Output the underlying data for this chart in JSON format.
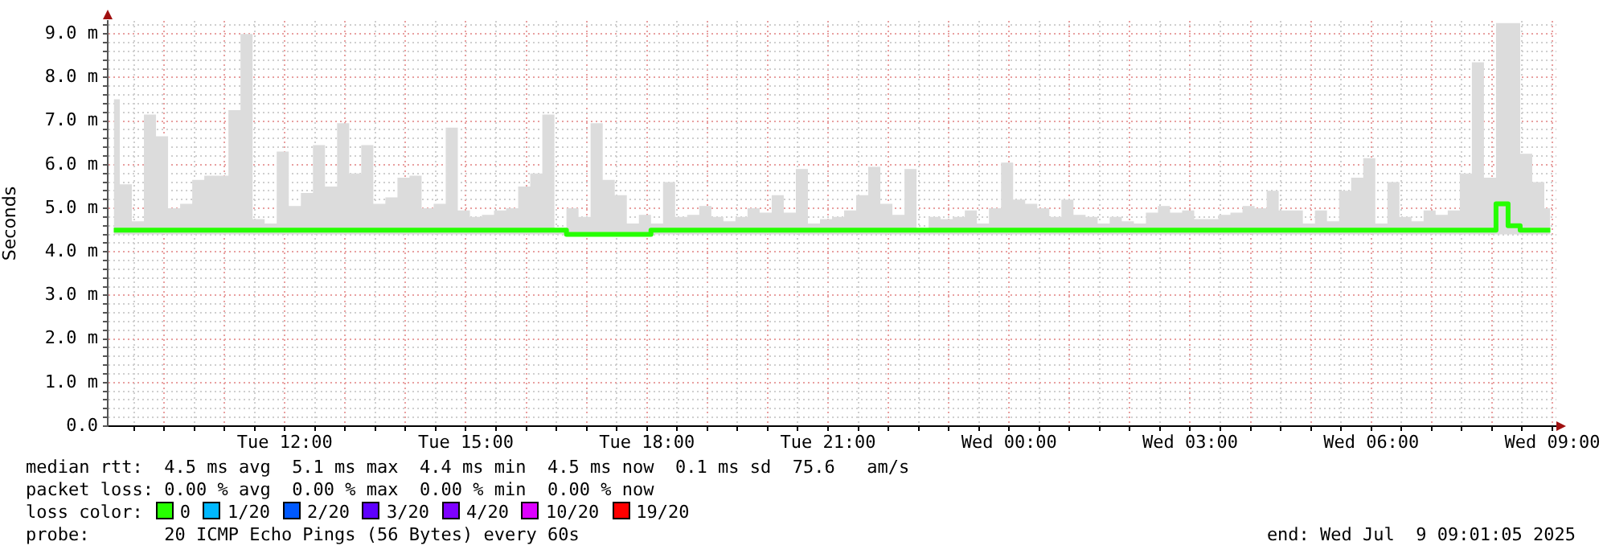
{
  "chart_data": {
    "type": "step",
    "ylabel": "Seconds",
    "legend_title": "loss color:",
    "legend": "bottom",
    "grid": true,
    "marker": "none",
    "line_style": "solid",
    "xlim": [
      "2025-07-08T09:04",
      "2025-07-09T09:04"
    ],
    "xticks": [
      {
        "value": "2025-07-08T09:30",
        "label": null
      },
      {
        "value": "2025-07-08T10:00",
        "label": null
      },
      {
        "value": "2025-07-08T10:30",
        "label": null
      },
      {
        "value": "2025-07-08T11:00",
        "label": null
      },
      {
        "value": "2025-07-08T11:30",
        "label": null
      },
      {
        "value": "2025-07-08T12:00",
        "label": "Tue 12:00"
      },
      {
        "value": "2025-07-08T12:30",
        "label": null
      },
      {
        "value": "2025-07-08T13:00",
        "label": null
      },
      {
        "value": "2025-07-08T13:30",
        "label": null
      },
      {
        "value": "2025-07-08T14:00",
        "label": null
      },
      {
        "value": "2025-07-08T14:30",
        "label": null
      },
      {
        "value": "2025-07-08T15:00",
        "label": "Tue 15:00"
      },
      {
        "value": "2025-07-08T15:30",
        "label": null
      },
      {
        "value": "2025-07-08T16:00",
        "label": null
      },
      {
        "value": "2025-07-08T16:30",
        "label": null
      },
      {
        "value": "2025-07-08T17:00",
        "label": null
      },
      {
        "value": "2025-07-08T17:30",
        "label": null
      },
      {
        "value": "2025-07-08T18:00",
        "label": "Tue 18:00"
      },
      {
        "value": "2025-07-08T18:30",
        "label": null
      },
      {
        "value": "2025-07-08T19:00",
        "label": null
      },
      {
        "value": "2025-07-08T19:30",
        "label": null
      },
      {
        "value": "2025-07-08T20:00",
        "label": null
      },
      {
        "value": "2025-07-08T20:30",
        "label": null
      },
      {
        "value": "2025-07-08T21:00",
        "label": "Tue 21:00"
      },
      {
        "value": "2025-07-08T21:30",
        "label": null
      },
      {
        "value": "2025-07-08T22:00",
        "label": null
      },
      {
        "value": "2025-07-08T22:30",
        "label": null
      },
      {
        "value": "2025-07-08T23:00",
        "label": null
      },
      {
        "value": "2025-07-08T23:30",
        "label": null
      },
      {
        "value": "2025-07-09T00:00",
        "label": "Wed 00:00"
      },
      {
        "value": "2025-07-09T00:30",
        "label": null
      },
      {
        "value": "2025-07-09T01:00",
        "label": null
      },
      {
        "value": "2025-07-09T01:30",
        "label": null
      },
      {
        "value": "2025-07-09T02:00",
        "label": null
      },
      {
        "value": "2025-07-09T02:30",
        "label": null
      },
      {
        "value": "2025-07-09T03:00",
        "label": "Wed 03:00"
      },
      {
        "value": "2025-07-09T03:30",
        "label": null
      },
      {
        "value": "2025-07-09T04:00",
        "label": null
      },
      {
        "value": "2025-07-09T04:30",
        "label": null
      },
      {
        "value": "2025-07-09T05:00",
        "label": null
      },
      {
        "value": "2025-07-09T05:30",
        "label": null
      },
      {
        "value": "2025-07-09T06:00",
        "label": "Wed 06:00"
      },
      {
        "value": "2025-07-09T06:30",
        "label": null
      },
      {
        "value": "2025-07-09T07:00",
        "label": null
      },
      {
        "value": "2025-07-09T07:30",
        "label": null
      },
      {
        "value": "2025-07-09T08:00",
        "label": null
      },
      {
        "value": "2025-07-09T08:30",
        "label": null
      },
      {
        "value": "2025-07-09T09:00",
        "label": "Wed 09:00"
      }
    ],
    "ylim": [
      0,
      9.3
    ],
    "yticks": [
      {
        "value": 0,
        "label": "0.0"
      },
      {
        "value": 0.2,
        "label": null
      },
      {
        "value": 0.4,
        "label": null
      },
      {
        "value": 0.6,
        "label": null
      },
      {
        "value": 0.8,
        "label": null
      },
      {
        "value": 1,
        "label": "1.0 m"
      },
      {
        "value": 1.2,
        "label": null
      },
      {
        "value": 1.4,
        "label": null
      },
      {
        "value": 1.6,
        "label": null
      },
      {
        "value": 1.8,
        "label": null
      },
      {
        "value": 2,
        "label": "2.0 m"
      },
      {
        "value": 2.2,
        "label": null
      },
      {
        "value": 2.4,
        "label": null
      },
      {
        "value": 2.6,
        "label": null
      },
      {
        "value": 2.8,
        "label": null
      },
      {
        "value": 3,
        "label": "3.0 m"
      },
      {
        "value": 3.2,
        "label": null
      },
      {
        "value": 3.4,
        "label": null
      },
      {
        "value": 3.6,
        "label": null
      },
      {
        "value": 3.8,
        "label": null
      },
      {
        "value": 4,
        "label": "4.0 m"
      },
      {
        "value": 4.2,
        "label": null
      },
      {
        "value": 4.4,
        "label": null
      },
      {
        "value": 4.6,
        "label": null
      },
      {
        "value": 4.8,
        "label": null
      },
      {
        "value": 5,
        "label": "5.0 m"
      },
      {
        "value": 5.2,
        "label": null
      },
      {
        "value": 5.4,
        "label": null
      },
      {
        "value": 5.6,
        "label": null
      },
      {
        "value": 5.8,
        "label": null
      },
      {
        "value": 6,
        "label": "6.0 m"
      },
      {
        "value": 6.2,
        "label": null
      },
      {
        "value": 6.4,
        "label": null
      },
      {
        "value": 6.6,
        "label": null
      },
      {
        "value": 6.8,
        "label": null
      },
      {
        "value": 7,
        "label": "7.0 m"
      },
      {
        "value": 7.2,
        "label": null
      },
      {
        "value": 7.4,
        "label": null
      },
      {
        "value": 7.6,
        "label": null
      },
      {
        "value": 7.8,
        "label": null
      },
      {
        "value": 8,
        "label": "8.0 m"
      },
      {
        "value": 8.2,
        "label": null
      },
      {
        "value": 8.4,
        "label": null
      },
      {
        "value": 8.6,
        "label": null
      },
      {
        "value": 8.8,
        "label": null
      },
      {
        "value": 9,
        "label": "9.0 m"
      },
      {
        "value": 9.2,
        "label": null
      }
    ],
    "x": [
      "2025-07-08T09:10",
      "2025-07-08T09:22",
      "2025-07-08T09:34",
      "2025-07-08T09:46",
      "2025-07-08T09:58",
      "2025-07-08T10:10",
      "2025-07-08T10:22",
      "2025-07-08T10:34",
      "2025-07-08T10:46",
      "2025-07-08T10:58",
      "2025-07-08T11:10",
      "2025-07-08T11:22",
      "2025-07-08T11:34",
      "2025-07-08T11:46",
      "2025-07-08T11:58",
      "2025-07-08T12:10",
      "2025-07-08T12:22",
      "2025-07-08T12:34",
      "2025-07-08T12:46",
      "2025-07-08T12:58",
      "2025-07-08T13:10",
      "2025-07-08T13:22",
      "2025-07-08T13:34",
      "2025-07-08T13:46",
      "2025-07-08T13:58",
      "2025-07-08T14:10",
      "2025-07-08T14:22",
      "2025-07-08T14:34",
      "2025-07-08T14:46",
      "2025-07-08T14:58",
      "2025-07-08T15:10",
      "2025-07-08T15:22",
      "2025-07-08T15:34",
      "2025-07-08T15:46",
      "2025-07-08T15:58",
      "2025-07-08T16:10",
      "2025-07-08T16:22",
      "2025-07-08T16:34",
      "2025-07-08T16:46",
      "2025-07-08T16:58",
      "2025-07-08T17:10",
      "2025-07-08T17:22",
      "2025-07-08T17:34",
      "2025-07-08T17:46",
      "2025-07-08T17:58",
      "2025-07-08T18:10",
      "2025-07-08T18:22",
      "2025-07-08T18:34",
      "2025-07-08T18:46",
      "2025-07-08T18:58",
      "2025-07-08T19:10",
      "2025-07-08T19:22",
      "2025-07-08T19:34",
      "2025-07-08T19:46",
      "2025-07-08T19:58",
      "2025-07-08T20:10",
      "2025-07-08T20:22",
      "2025-07-08T20:34",
      "2025-07-08T20:46",
      "2025-07-08T20:58",
      "2025-07-08T21:10",
      "2025-07-08T21:22",
      "2025-07-08T21:34",
      "2025-07-08T21:46",
      "2025-07-08T21:58",
      "2025-07-08T22:10",
      "2025-07-08T22:22",
      "2025-07-08T22:34",
      "2025-07-08T22:46",
      "2025-07-08T22:58",
      "2025-07-08T23:10",
      "2025-07-08T23:22",
      "2025-07-08T23:34",
      "2025-07-08T23:46",
      "2025-07-08T23:58",
      "2025-07-09T00:10",
      "2025-07-09T00:22",
      "2025-07-09T00:34",
      "2025-07-09T00:46",
      "2025-07-09T00:58",
      "2025-07-09T01:10",
      "2025-07-09T01:22",
      "2025-07-09T01:34",
      "2025-07-09T01:46",
      "2025-07-09T01:58",
      "2025-07-09T02:10",
      "2025-07-09T02:22",
      "2025-07-09T02:34",
      "2025-07-09T02:46",
      "2025-07-09T02:58",
      "2025-07-09T03:10",
      "2025-07-09T03:22",
      "2025-07-09T03:34",
      "2025-07-09T03:46",
      "2025-07-09T03:58",
      "2025-07-09T04:10",
      "2025-07-09T04:22",
      "2025-07-09T04:34",
      "2025-07-09T04:46",
      "2025-07-09T04:58",
      "2025-07-09T05:10",
      "2025-07-09T05:22",
      "2025-07-09T05:34",
      "2025-07-09T05:46",
      "2025-07-09T05:58",
      "2025-07-09T06:10",
      "2025-07-09T06:22",
      "2025-07-09T06:34",
      "2025-07-09T06:46",
      "2025-07-09T06:58",
      "2025-07-09T07:10",
      "2025-07-09T07:22",
      "2025-07-09T07:34",
      "2025-07-09T07:46",
      "2025-07-09T07:58",
      "2025-07-09T08:10",
      "2025-07-09T08:22",
      "2025-07-09T08:34",
      "2025-07-09T08:46",
      "2025-07-09T08:58"
    ],
    "series": [
      {
        "name": "0",
        "color": "#26ff00",
        "values": [
          4.5,
          4.5,
          4.5,
          4.5,
          4.5,
          4.5,
          4.5,
          4.5,
          4.5,
          4.5,
          4.5,
          4.5,
          4.5,
          4.5,
          4.5,
          4.5,
          4.5,
          4.5,
          4.5,
          4.5,
          4.5,
          4.5,
          4.5,
          4.5,
          4.5,
          4.5,
          4.5,
          4.5,
          4.5,
          4.5,
          4.5,
          4.5,
          4.5,
          4.5,
          4.5,
          4.5,
          4.5,
          4.5,
          4.4,
          4.4,
          4.4,
          4.4,
          4.4,
          4.4,
          4.4,
          4.5,
          4.5,
          4.5,
          4.5,
          4.5,
          4.5,
          4.5,
          4.5,
          4.5,
          4.5,
          4.5,
          4.5,
          4.5,
          4.5,
          4.5,
          4.5,
          4.5,
          4.5,
          4.5,
          4.5,
          4.5,
          4.5,
          4.5,
          4.5,
          4.5,
          4.5,
          4.5,
          4.5,
          4.5,
          4.5,
          4.5,
          4.5,
          4.5,
          4.5,
          4.5,
          4.5,
          4.5,
          4.5,
          4.5,
          4.5,
          4.5,
          4.5,
          4.5,
          4.5,
          4.5,
          4.5,
          4.5,
          4.5,
          4.5,
          4.5,
          4.5,
          4.5,
          4.5,
          4.5,
          4.5,
          4.5,
          4.5,
          4.5,
          4.5,
          4.5,
          4.5,
          4.5,
          4.5,
          4.5,
          4.5,
          4.5,
          4.5,
          4.5,
          4.5,
          4.5,
          5.1,
          4.6,
          4.5,
          4.5,
          4.5
        ],
        "lower": [
          4.4,
          4.4,
          4.4,
          4.4,
          4.4,
          4.4,
          4.4,
          4.4,
          4.4,
          4.4,
          4.4,
          4.4,
          4.4,
          4.4,
          4.4,
          4.4,
          4.4,
          4.4,
          4.4,
          4.4,
          4.4,
          4.4,
          4.4,
          4.4,
          4.4,
          4.4,
          4.4,
          4.4,
          4.4,
          4.4,
          4.4,
          4.4,
          4.4,
          4.4,
          4.4,
          4.4,
          4.4,
          4.4,
          4.4,
          4.4,
          4.4,
          4.4,
          4.4,
          4.4,
          4.4,
          4.4,
          4.4,
          4.4,
          4.4,
          4.4,
          4.4,
          4.4,
          4.4,
          4.4,
          4.4,
          4.4,
          4.4,
          4.4,
          4.4,
          4.4,
          4.4,
          4.4,
          4.4,
          4.4,
          4.4,
          4.4,
          4.4,
          4.4,
          4.4,
          4.4,
          4.4,
          4.4,
          4.4,
          4.4,
          4.4,
          4.4,
          4.4,
          4.4,
          4.4,
          4.4,
          4.4,
          4.4,
          4.4,
          4.4,
          4.4,
          4.4,
          4.4,
          4.4,
          4.4,
          4.4,
          4.4,
          4.4,
          4.4,
          4.4,
          4.4,
          4.4,
          4.4,
          4.4,
          4.4,
          4.4,
          4.4,
          4.4,
          4.4,
          4.4,
          4.4,
          4.4,
          4.4,
          4.4,
          4.4,
          4.4,
          4.4,
          4.4,
          4.4,
          4.4,
          4.4,
          4.4,
          4.4,
          4.4,
          4.4,
          4.4
        ],
        "upper": [
          7.5,
          5.55,
          4.7,
          7.15,
          6.65,
          5,
          5.1,
          5.65,
          5.75,
          5.75,
          7.25,
          9,
          4.75,
          4.65,
          6.3,
          5.05,
          5.35,
          6.45,
          5.5,
          6.95,
          5.8,
          6.45,
          5.1,
          5.25,
          5.7,
          5.75,
          5,
          5.1,
          6.85,
          4.95,
          4.8,
          4.85,
          4.95,
          5,
          5.5,
          5.8,
          7.15,
          4.55,
          5,
          4.8,
          6.95,
          5.65,
          5.3,
          4.65,
          4.85,
          4.65,
          5.6,
          4.8,
          4.85,
          5.05,
          4.8,
          4.7,
          4.8,
          5,
          4.9,
          5.3,
          4.9,
          5.9,
          4.65,
          4.75,
          4.8,
          4.95,
          5.3,
          5.95,
          5.1,
          4.85,
          5.9,
          4.5,
          4.8,
          4.75,
          4.8,
          4.95,
          4.65,
          5,
          6.05,
          5.2,
          5.1,
          5,
          4.8,
          5.2,
          4.85,
          4.8,
          4.65,
          4.8,
          4.7,
          4.65,
          4.9,
          5.05,
          4.9,
          4.95,
          4.75,
          4.75,
          4.85,
          4.9,
          5.05,
          5,
          5.4,
          4.95,
          4.95,
          4.65,
          4.95,
          4.7,
          5.4,
          5.7,
          6.15,
          4.65,
          5.6,
          4.8,
          4.7,
          4.95,
          4.85,
          4.95,
          5.8,
          8.35,
          5.7,
          9.25,
          9.25,
          6.25,
          5.6,
          5
        ]
      },
      {
        "name": "1/20",
        "color": "#00b8ff",
        "values": [
          null,
          null,
          null,
          null,
          null,
          null,
          null,
          null,
          null,
          null,
          null,
          null,
          null,
          null,
          null,
          null,
          null,
          null,
          null,
          null,
          null,
          null,
          null,
          null,
          null,
          null,
          null,
          null,
          null,
          null,
          null,
          null,
          null,
          null,
          null,
          null,
          null,
          null,
          null,
          null,
          null,
          null,
          null,
          null,
          null,
          null,
          null,
          null,
          null,
          null,
          null,
          null,
          null,
          null,
          null,
          null,
          null,
          null,
          null,
          null,
          null,
          null,
          null,
          null,
          null,
          null,
          null,
          null,
          null,
          null,
          null,
          null,
          null,
          null,
          null,
          null,
          null,
          null,
          null,
          null,
          null,
          null,
          null,
          null,
          null,
          null,
          null,
          null,
          null,
          null,
          null,
          null,
          null,
          null,
          null,
          null,
          null,
          null,
          null,
          null,
          null,
          null,
          null,
          null,
          null,
          null,
          null,
          null,
          null,
          null,
          null,
          null,
          null,
          null,
          null,
          null,
          null,
          null,
          null,
          null
        ]
      },
      {
        "name": "2/20",
        "color": "#0059ff",
        "values": [
          null,
          null,
          null,
          null,
          null,
          null,
          null,
          null,
          null,
          null,
          null,
          null,
          null,
          null,
          null,
          null,
          null,
          null,
          null,
          null,
          null,
          null,
          null,
          null,
          null,
          null,
          null,
          null,
          null,
          null,
          null,
          null,
          null,
          null,
          null,
          null,
          null,
          null,
          null,
          null,
          null,
          null,
          null,
          null,
          null,
          null,
          null,
          null,
          null,
          null,
          null,
          null,
          null,
          null,
          null,
          null,
          null,
          null,
          null,
          null,
          null,
          null,
          null,
          null,
          null,
          null,
          null,
          null,
          null,
          null,
          null,
          null,
          null,
          null,
          null,
          null,
          null,
          null,
          null,
          null,
          null,
          null,
          null,
          null,
          null,
          null,
          null,
          null,
          null,
          null,
          null,
          null,
          null,
          null,
          null,
          null,
          null,
          null,
          null,
          null,
          null,
          null,
          null,
          null,
          null,
          null,
          null,
          null,
          null,
          null,
          null,
          null,
          null,
          null,
          null,
          null,
          null,
          null,
          null,
          null
        ]
      },
      {
        "name": "3/20",
        "color": "#5e00ff",
        "values": [
          null,
          null,
          null,
          null,
          null,
          null,
          null,
          null,
          null,
          null,
          null,
          null,
          null,
          null,
          null,
          null,
          null,
          null,
          null,
          null,
          null,
          null,
          null,
          null,
          null,
          null,
          null,
          null,
          null,
          null,
          null,
          null,
          null,
          null,
          null,
          null,
          null,
          null,
          null,
          null,
          null,
          null,
          null,
          null,
          null,
          null,
          null,
          null,
          null,
          null,
          null,
          null,
          null,
          null,
          null,
          null,
          null,
          null,
          null,
          null,
          null,
          null,
          null,
          null,
          null,
          null,
          null,
          null,
          null,
          null,
          null,
          null,
          null,
          null,
          null,
          null,
          null,
          null,
          null,
          null,
          null,
          null,
          null,
          null,
          null,
          null,
          null,
          null,
          null,
          null,
          null,
          null,
          null,
          null,
          null,
          null,
          null,
          null,
          null,
          null,
          null,
          null,
          null,
          null,
          null,
          null,
          null,
          null,
          null,
          null,
          null,
          null,
          null,
          null,
          null,
          null,
          null,
          null,
          null,
          null
        ]
      },
      {
        "name": "4/20",
        "color": "#7e00ff",
        "values": [
          null,
          null,
          null,
          null,
          null,
          null,
          null,
          null,
          null,
          null,
          null,
          null,
          null,
          null,
          null,
          null,
          null,
          null,
          null,
          null,
          null,
          null,
          null,
          null,
          null,
          null,
          null,
          null,
          null,
          null,
          null,
          null,
          null,
          null,
          null,
          null,
          null,
          null,
          null,
          null,
          null,
          null,
          null,
          null,
          null,
          null,
          null,
          null,
          null,
          null,
          null,
          null,
          null,
          null,
          null,
          null,
          null,
          null,
          null,
          null,
          null,
          null,
          null,
          null,
          null,
          null,
          null,
          null,
          null,
          null,
          null,
          null,
          null,
          null,
          null,
          null,
          null,
          null,
          null,
          null,
          null,
          null,
          null,
          null,
          null,
          null,
          null,
          null,
          null,
          null,
          null,
          null,
          null,
          null,
          null,
          null,
          null,
          null,
          null,
          null,
          null,
          null,
          null,
          null,
          null,
          null,
          null,
          null,
          null,
          null,
          null,
          null,
          null,
          null,
          null,
          null,
          null,
          null,
          null,
          null
        ]
      },
      {
        "name": "10/20",
        "color": "#dd00ff",
        "values": [
          null,
          null,
          null,
          null,
          null,
          null,
          null,
          null,
          null,
          null,
          null,
          null,
          null,
          null,
          null,
          null,
          null,
          null,
          null,
          null,
          null,
          null,
          null,
          null,
          null,
          null,
          null,
          null,
          null,
          null,
          null,
          null,
          null,
          null,
          null,
          null,
          null,
          null,
          null,
          null,
          null,
          null,
          null,
          null,
          null,
          null,
          null,
          null,
          null,
          null,
          null,
          null,
          null,
          null,
          null,
          null,
          null,
          null,
          null,
          null,
          null,
          null,
          null,
          null,
          null,
          null,
          null,
          null,
          null,
          null,
          null,
          null,
          null,
          null,
          null,
          null,
          null,
          null,
          null,
          null,
          null,
          null,
          null,
          null,
          null,
          null,
          null,
          null,
          null,
          null,
          null,
          null,
          null,
          null,
          null,
          null,
          null,
          null,
          null,
          null,
          null,
          null,
          null,
          null,
          null,
          null,
          null,
          null,
          null,
          null,
          null,
          null,
          null,
          null,
          null,
          null,
          null,
          null,
          null,
          null
        ]
      },
      {
        "name": "19/20",
        "color": "#ff0000",
        "values": [
          null,
          null,
          null,
          null,
          null,
          null,
          null,
          null,
          null,
          null,
          null,
          null,
          null,
          null,
          null,
          null,
          null,
          null,
          null,
          null,
          null,
          null,
          null,
          null,
          null,
          null,
          null,
          null,
          null,
          null,
          null,
          null,
          null,
          null,
          null,
          null,
          null,
          null,
          null,
          null,
          null,
          null,
          null,
          null,
          null,
          null,
          null,
          null,
          null,
          null,
          null,
          null,
          null,
          null,
          null,
          null,
          null,
          null,
          null,
          null,
          null,
          null,
          null,
          null,
          null,
          null,
          null,
          null,
          null,
          null,
          null,
          null,
          null,
          null,
          null,
          null,
          null,
          null,
          null,
          null,
          null,
          null,
          null,
          null,
          null,
          null,
          null,
          null,
          null,
          null,
          null,
          null,
          null,
          null,
          null,
          null,
          null,
          null,
          null,
          null,
          null,
          null,
          null,
          null,
          null,
          null,
          null,
          null,
          null,
          null,
          null,
          null,
          null,
          null,
          null,
          null,
          null,
          null,
          null,
          null
        ]
      }
    ],
    "annotations": [
      "median rtt:  4.5 ms avg  5.1 ms max  4.4 ms min  4.5 ms now  0.1 ms sd  75.6   am/s",
      "packet loss: 0.00 % avg  0.00 % max  0.00 % min  0.00 % now",
      "probe:       20 ICMP Echo Pings (56 Bytes) every 60s",
      "end: Wed Jul  9 09:01:05 2025"
    ]
  }
}
